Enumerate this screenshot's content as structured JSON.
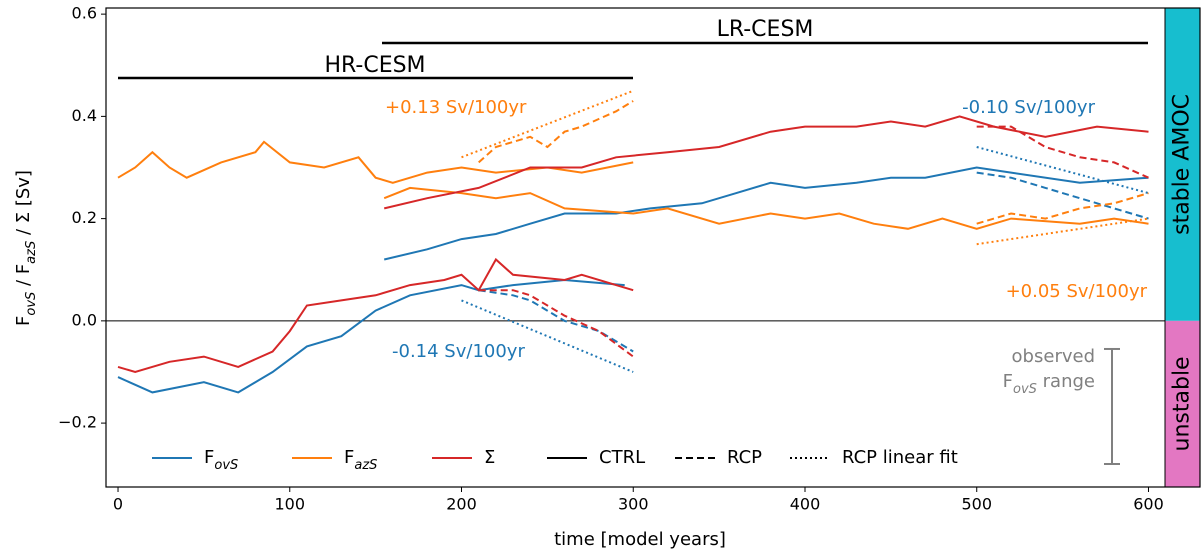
{
  "chart_data": {
    "type": "line",
    "xlabel": "time [model years]",
    "ylabel": [
      {
        "text": "F"
      },
      {
        "text": "ovS",
        "sub": true
      },
      {
        "text": " / F"
      },
      {
        "text": "azS",
        "sub": true
      },
      {
        "text": " / Σ  [Sv]"
      }
    ],
    "xlim": [
      -7,
      630
    ],
    "ylim": [
      -0.325,
      0.612
    ],
    "xticks": [
      0,
      100,
      200,
      300,
      400,
      500,
      600
    ],
    "yticks": [
      {
        "value": -0.2,
        "label": "−0.2"
      },
      {
        "value": 0,
        "label": "0.0"
      },
      0.2,
      0.4,
      0.6
    ],
    "experiments": [
      "HR-CESM",
      "LR-CESM"
    ],
    "regions": [
      {
        "label": "stable AMOC",
        "color": "#17becf"
      },
      {
        "label": "unstable",
        "color": "#e377c2"
      }
    ],
    "series": [
      {
        "color": "#1f77b4",
        "dash": "solid",
        "x": [
          0,
          20,
          50,
          70,
          90,
          110,
          130,
          150,
          170,
          200,
          210,
          230,
          260,
          295
        ],
        "values": [
          -0.11,
          -0.14,
          -0.12,
          -0.14,
          -0.1,
          -0.05,
          -0.03,
          0.02,
          0.05,
          0.07,
          0.06,
          0.07,
          0.08,
          0.07
        ]
      },
      {
        "color": "#ff7f0e",
        "dash": "solid",
        "x": [
          0,
          10,
          20,
          30,
          40,
          60,
          80,
          85,
          100,
          120,
          140,
          150,
          160,
          180,
          200,
          220,
          250,
          270,
          300
        ],
        "values": [
          0.28,
          0.3,
          0.33,
          0.3,
          0.28,
          0.31,
          0.33,
          0.35,
          0.31,
          0.3,
          0.32,
          0.28,
          0.27,
          0.29,
          0.3,
          0.29,
          0.3,
          0.29,
          0.31
        ]
      },
      {
        "color": "#d62728",
        "dash": "solid",
        "x": [
          0,
          10,
          30,
          50,
          70,
          90,
          100,
          110,
          130,
          150,
          170,
          190,
          200,
          210,
          220,
          230,
          260,
          270,
          300
        ],
        "values": [
          -0.09,
          -0.1,
          -0.08,
          -0.07,
          -0.09,
          -0.06,
          -0.02,
          0.03,
          0.04,
          0.05,
          0.07,
          0.08,
          0.09,
          0.06,
          0.12,
          0.09,
          0.08,
          0.09,
          0.06
        ]
      },
      {
        "color": "#1f77b4",
        "dash": "dashed",
        "x": [
          210,
          230,
          240,
          260,
          280,
          300
        ],
        "values": [
          0.06,
          0.05,
          0.04,
          0,
          -0.02,
          -0.06
        ]
      },
      {
        "color": "#ff7f0e",
        "dash": "dashed",
        "x": [
          210,
          220,
          240,
          250,
          260,
          270,
          290,
          300
        ],
        "values": [
          0.31,
          0.34,
          0.36,
          0.34,
          0.37,
          0.38,
          0.41,
          0.43
        ]
      },
      {
        "color": "#d62728",
        "dash": "dashed",
        "x": [
          210,
          230,
          240,
          260,
          280,
          300
        ],
        "values": [
          0.06,
          0.06,
          0.05,
          0.01,
          -0.02,
          -0.07
        ]
      },
      {
        "color": "#1f77b4",
        "dash": "dotted",
        "x": [
          200,
          300
        ],
        "values": [
          0.04,
          -0.1
        ]
      },
      {
        "color": "#ff7f0e",
        "dash": "dotted",
        "x": [
          200,
          300
        ],
        "values": [
          0.32,
          0.45
        ]
      },
      {
        "color": "#1f77b4",
        "dash": "solid",
        "x": [
          155,
          180,
          200,
          220,
          240,
          260,
          290,
          310,
          340,
          360,
          380,
          400,
          430,
          450,
          470,
          500,
          520,
          560,
          600
        ],
        "values": [
          0.12,
          0.14,
          0.16,
          0.17,
          0.19,
          0.21,
          0.21,
          0.22,
          0.23,
          0.25,
          0.27,
          0.26,
          0.27,
          0.28,
          0.28,
          0.3,
          0.29,
          0.27,
          0.28
        ]
      },
      {
        "color": "#ff7f0e",
        "dash": "solid",
        "x": [
          155,
          170,
          200,
          220,
          240,
          260,
          300,
          320,
          350,
          380,
          400,
          420,
          440,
          460,
          480,
          500,
          520,
          560,
          580,
          600
        ],
        "values": [
          0.24,
          0.26,
          0.25,
          0.24,
          0.25,
          0.22,
          0.21,
          0.22,
          0.19,
          0.21,
          0.2,
          0.21,
          0.19,
          0.18,
          0.2,
          0.18,
          0.2,
          0.19,
          0.2,
          0.19
        ]
      },
      {
        "color": "#d62728",
        "dash": "solid",
        "x": [
          155,
          180,
          210,
          240,
          270,
          290,
          320,
          350,
          380,
          400,
          430,
          450,
          470,
          490,
          510,
          540,
          570,
          600
        ],
        "values": [
          0.22,
          0.24,
          0.26,
          0.3,
          0.3,
          0.32,
          0.33,
          0.34,
          0.37,
          0.38,
          0.38,
          0.39,
          0.38,
          0.4,
          0.38,
          0.36,
          0.38,
          0.37
        ]
      },
      {
        "color": "#1f77b4",
        "dash": "dashed",
        "x": [
          500,
          520,
          540,
          560,
          580,
          600
        ],
        "values": [
          0.29,
          0.28,
          0.26,
          0.24,
          0.22,
          0.2
        ]
      },
      {
        "color": "#ff7f0e",
        "dash": "dashed",
        "x": [
          500,
          520,
          540,
          560,
          580,
          600
        ],
        "values": [
          0.19,
          0.21,
          0.2,
          0.22,
          0.23,
          0.25
        ]
      },
      {
        "color": "#d62728",
        "dash": "dashed",
        "x": [
          500,
          520,
          540,
          560,
          580,
          600
        ],
        "values": [
          0.38,
          0.38,
          0.34,
          0.32,
          0.31,
          0.28
        ]
      },
      {
        "color": "#1f77b4",
        "dash": "dotted",
        "x": [
          500,
          600
        ],
        "values": [
          0.34,
          0.25
        ]
      },
      {
        "color": "#ff7f0e",
        "dash": "dotted",
        "x": [
          500,
          600
        ],
        "values": [
          0.15,
          0.2
        ]
      }
    ],
    "annotations": [
      {
        "text": "+0.13 Sv/100yr",
        "color": "#ff7f0e"
      },
      {
        "text": "-0.10 Sv/100yr",
        "color": "#1f77b4"
      },
      {
        "text": "+0.05 Sv/100yr",
        "color": "#ff7f0e"
      },
      {
        "text": "-0.14 Sv/100yr",
        "color": "#1f77b4"
      }
    ],
    "legend": [
      {
        "label": "F",
        "sub": "ovS",
        "color": "#1f77b4",
        "dash": "solid"
      },
      {
        "label": "F",
        "sub": "azS",
        "color": "#ff7f0e",
        "dash": "solid"
      },
      {
        "label": "Σ",
        "color": "#d62728",
        "dash": "solid"
      },
      {
        "label": "CTRL",
        "color": "#000000",
        "dash": "solid"
      },
      {
        "label": "RCP",
        "color": "#000000",
        "dash": "dashed"
      },
      {
        "label": "RCP linear fit",
        "color": "#000000",
        "dash": "dotted"
      }
    ],
    "observed_range": {
      "lines": [
        {
          "text": "observed"
        },
        {
          "text": "F",
          "sub": "ovS",
          "rest": " range"
        }
      ],
      "values": [
        -0.055,
        -0.28
      ],
      "color": "#808080"
    }
  }
}
